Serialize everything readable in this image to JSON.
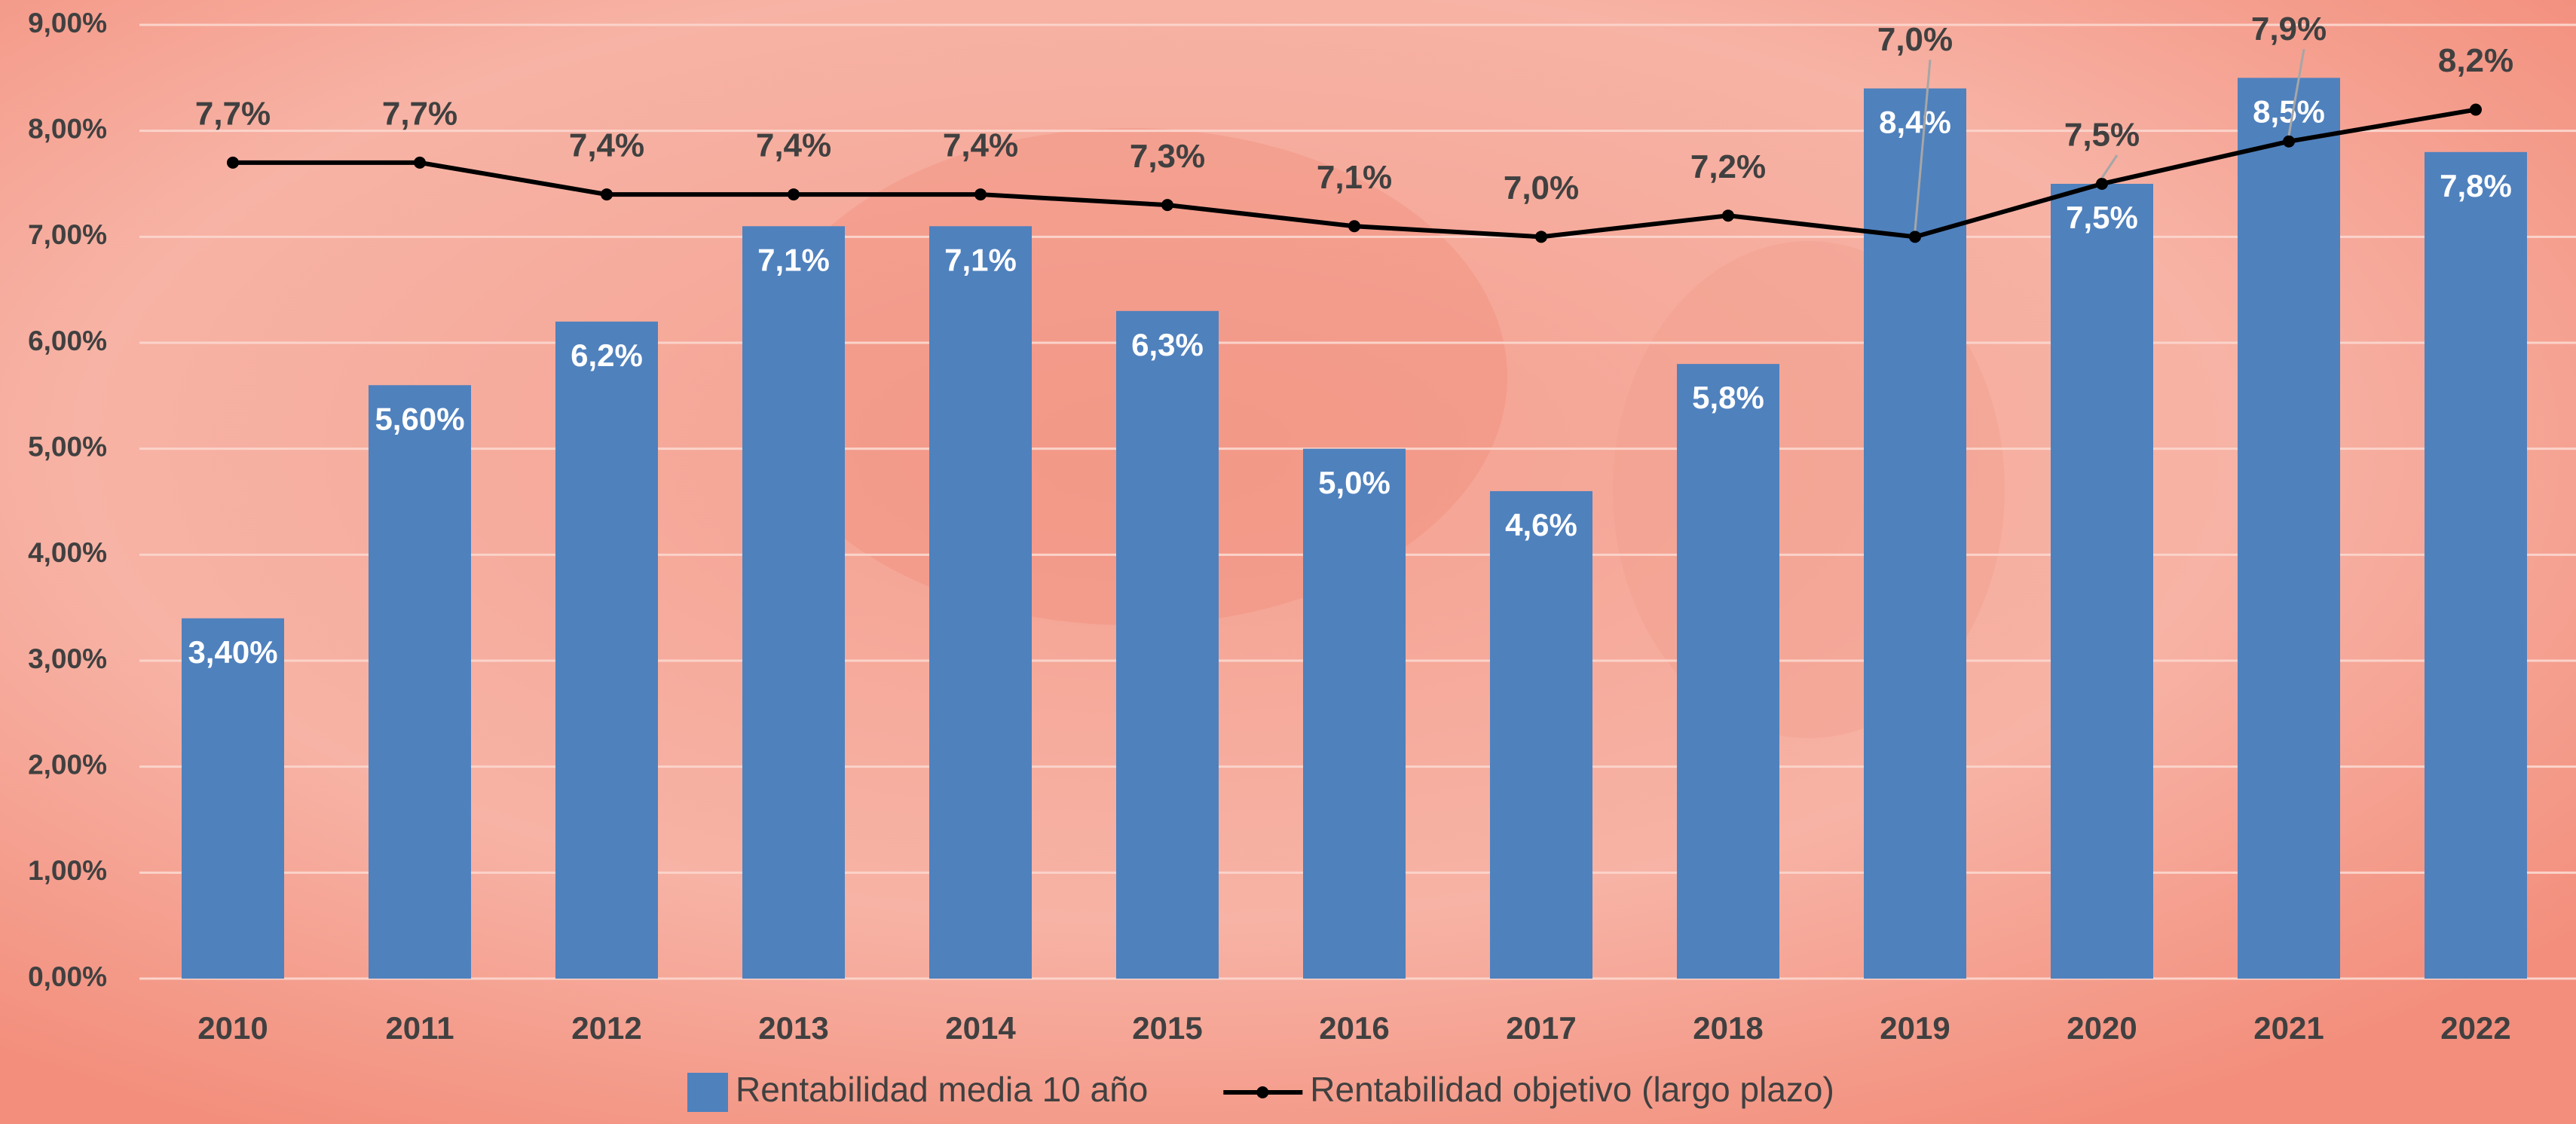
{
  "chart_data": {
    "type": "bar",
    "categories": [
      "2010",
      "2011",
      "2012",
      "2013",
      "2014",
      "2015",
      "2016",
      "2017",
      "2018",
      "2019",
      "2020",
      "2021",
      "2022"
    ],
    "series": [
      {
        "name": "Rentabilidad media 10 año",
        "type": "bar",
        "color": "#4f81bd",
        "values": [
          3.4,
          5.6,
          6.2,
          7.1,
          7.1,
          6.3,
          5.0,
          4.6,
          5.8,
          8.4,
          7.5,
          8.5,
          7.8
        ],
        "value_labels": [
          "3,40%",
          "5,60%",
          "6,2%",
          "7,1%",
          "7,1%",
          "6,3%",
          "5,0%",
          "4,6%",
          "5,8%",
          "8,4%",
          "7,5%",
          "8,5%",
          "7,8%"
        ]
      },
      {
        "name": "Rentabilidad objetivo (largo plazo)",
        "type": "line",
        "color": "#000000",
        "values": [
          7.7,
          7.7,
          7.4,
          7.4,
          7.4,
          7.3,
          7.1,
          7.0,
          7.2,
          7.0,
          7.5,
          7.9,
          8.2
        ],
        "value_labels": [
          "7,7%",
          "7,7%",
          "7,4%",
          "7,4%",
          "7,4%",
          "7,3%",
          "7,1%",
          "7,0%",
          "7,2%",
          "7,0%",
          "7,5%",
          "7,9%",
          "8,2%"
        ]
      }
    ],
    "ylim": [
      0,
      9
    ],
    "yticks": [
      {
        "value": 0,
        "label": "0,00%"
      },
      {
        "value": 1,
        "label": "1,00%"
      },
      {
        "value": 2,
        "label": "2,00%"
      },
      {
        "value": 3,
        "label": "3,00%"
      },
      {
        "value": 4,
        "label": "4,00%"
      },
      {
        "value": 5,
        "label": "5,00%"
      },
      {
        "value": 6,
        "label": "6,00%"
      },
      {
        "value": 7,
        "label": "7,00%"
      },
      {
        "value": 8,
        "label": "8,00%"
      },
      {
        "value": 9,
        "label": "9,00%"
      }
    ],
    "grid": true,
    "legend": "bottom"
  }
}
